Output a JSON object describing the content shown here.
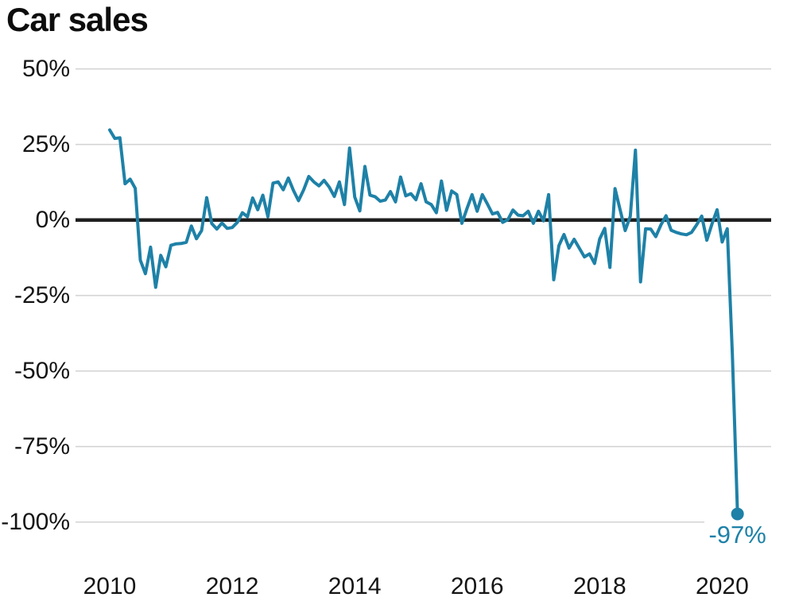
{
  "title": "Car sales",
  "chart_data": {
    "type": "line",
    "title": "Car sales",
    "unit": "%",
    "frequency": "monthly",
    "x_start": "2010-01",
    "x_end": "2020-04",
    "values": [
      29.8,
      27.0,
      27.2,
      12.0,
      13.5,
      10.5,
      -13.3,
      -17.8,
      -9.0,
      -22.3,
      -11.7,
      -15.5,
      -8.4,
      -7.9,
      -7.8,
      -7.4,
      -2.0,
      -6.2,
      -3.5,
      7.4,
      -1.2,
      -3.0,
      -1.0,
      -2.8,
      -2.5,
      -0.8,
      2.4,
      1.1,
      7.3,
      3.4,
      8.2,
      1.1,
      12.2,
      12.6,
      10.0,
      13.9,
      9.8,
      6.4,
      10.0,
      14.4,
      12.6,
      11.3,
      13.1,
      10.9,
      7.8,
      12.6,
      5.1,
      23.8,
      7.6,
      3.0,
      17.7,
      8.2,
      7.7,
      6.2,
      6.6,
      9.4,
      6.0,
      14.2,
      8.0,
      8.7,
      6.7,
      12.0,
      6.0,
      5.1,
      2.4,
      12.9,
      3.2,
      9.6,
      8.4,
      -1.1,
      3.8,
      8.4,
      2.9,
      8.4,
      5.3,
      2.0,
      2.5,
      -0.8,
      0.1,
      3.3,
      1.6,
      1.4,
      2.9,
      -1.1,
      2.9,
      -0.3,
      8.4,
      -19.8,
      -8.5,
      -4.8,
      -9.3,
      -6.4,
      -9.3,
      -12.2,
      -11.2,
      -14.4,
      -6.3,
      -2.8,
      -15.7,
      10.4,
      3.4,
      -3.5,
      1.2,
      23.1,
      -20.5,
      -2.9,
      -3.0,
      -5.5,
      -1.6,
      1.4,
      -3.4,
      -4.1,
      -4.6,
      -4.9,
      -4.1,
      -1.6,
      1.3,
      -6.7,
      -1.3,
      3.4,
      -7.3,
      -2.9,
      -44.4,
      -97.3
    ],
    "y_ticks": [
      {
        "value": 50,
        "label": "50%"
      },
      {
        "value": 25,
        "label": "25%"
      },
      {
        "value": 0,
        "label": "0%"
      },
      {
        "value": -25,
        "label": "-25%"
      },
      {
        "value": -50,
        "label": "-50%"
      },
      {
        "value": -75,
        "label": "-75%"
      },
      {
        "value": -100,
        "label": "-100%"
      }
    ],
    "x_ticks": [
      {
        "year": 2010,
        "label": "2010"
      },
      {
        "year": 2012,
        "label": "2012"
      },
      {
        "year": 2014,
        "label": "2014"
      },
      {
        "year": 2016,
        "label": "2016"
      },
      {
        "year": 2018,
        "label": "2018"
      },
      {
        "year": 2020,
        "label": "2020"
      }
    ],
    "ylim": [
      -110,
      55
    ],
    "grid": true,
    "zero_baseline": true,
    "legend": "none",
    "last_point": {
      "x": "2020-04",
      "value": -97.3,
      "label": "-97%"
    }
  },
  "colors": {
    "line": "#1e81a7",
    "annotation": "#1e81a7",
    "zero_line": "#1f1f1f",
    "gridline": "#d4d4d4",
    "text": "#151515",
    "background": "#ffffff"
  }
}
